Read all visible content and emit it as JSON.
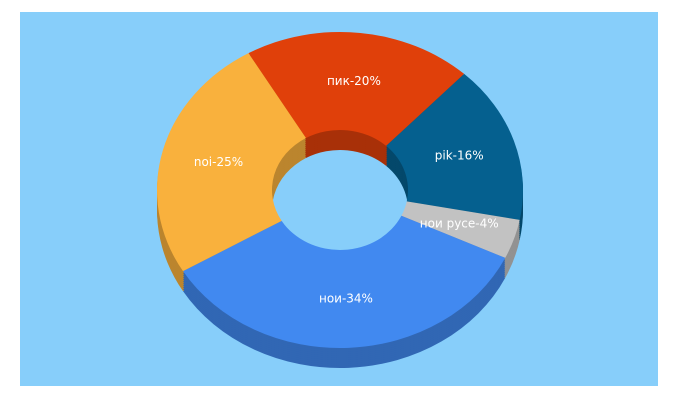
{
  "chart_data": {
    "type": "pie",
    "donut": true,
    "values": [
      20,
      16,
      4,
      34,
      25
    ],
    "value_labels": [
      "пик-20%",
      "pik-16%",
      "нои русе-4%",
      "нои-34%",
      "noi-25%"
    ],
    "colors": [
      "#e0400a",
      "#05608f",
      "#c2c2c2",
      "#4189f0",
      "#f9b13d"
    ]
  }
}
